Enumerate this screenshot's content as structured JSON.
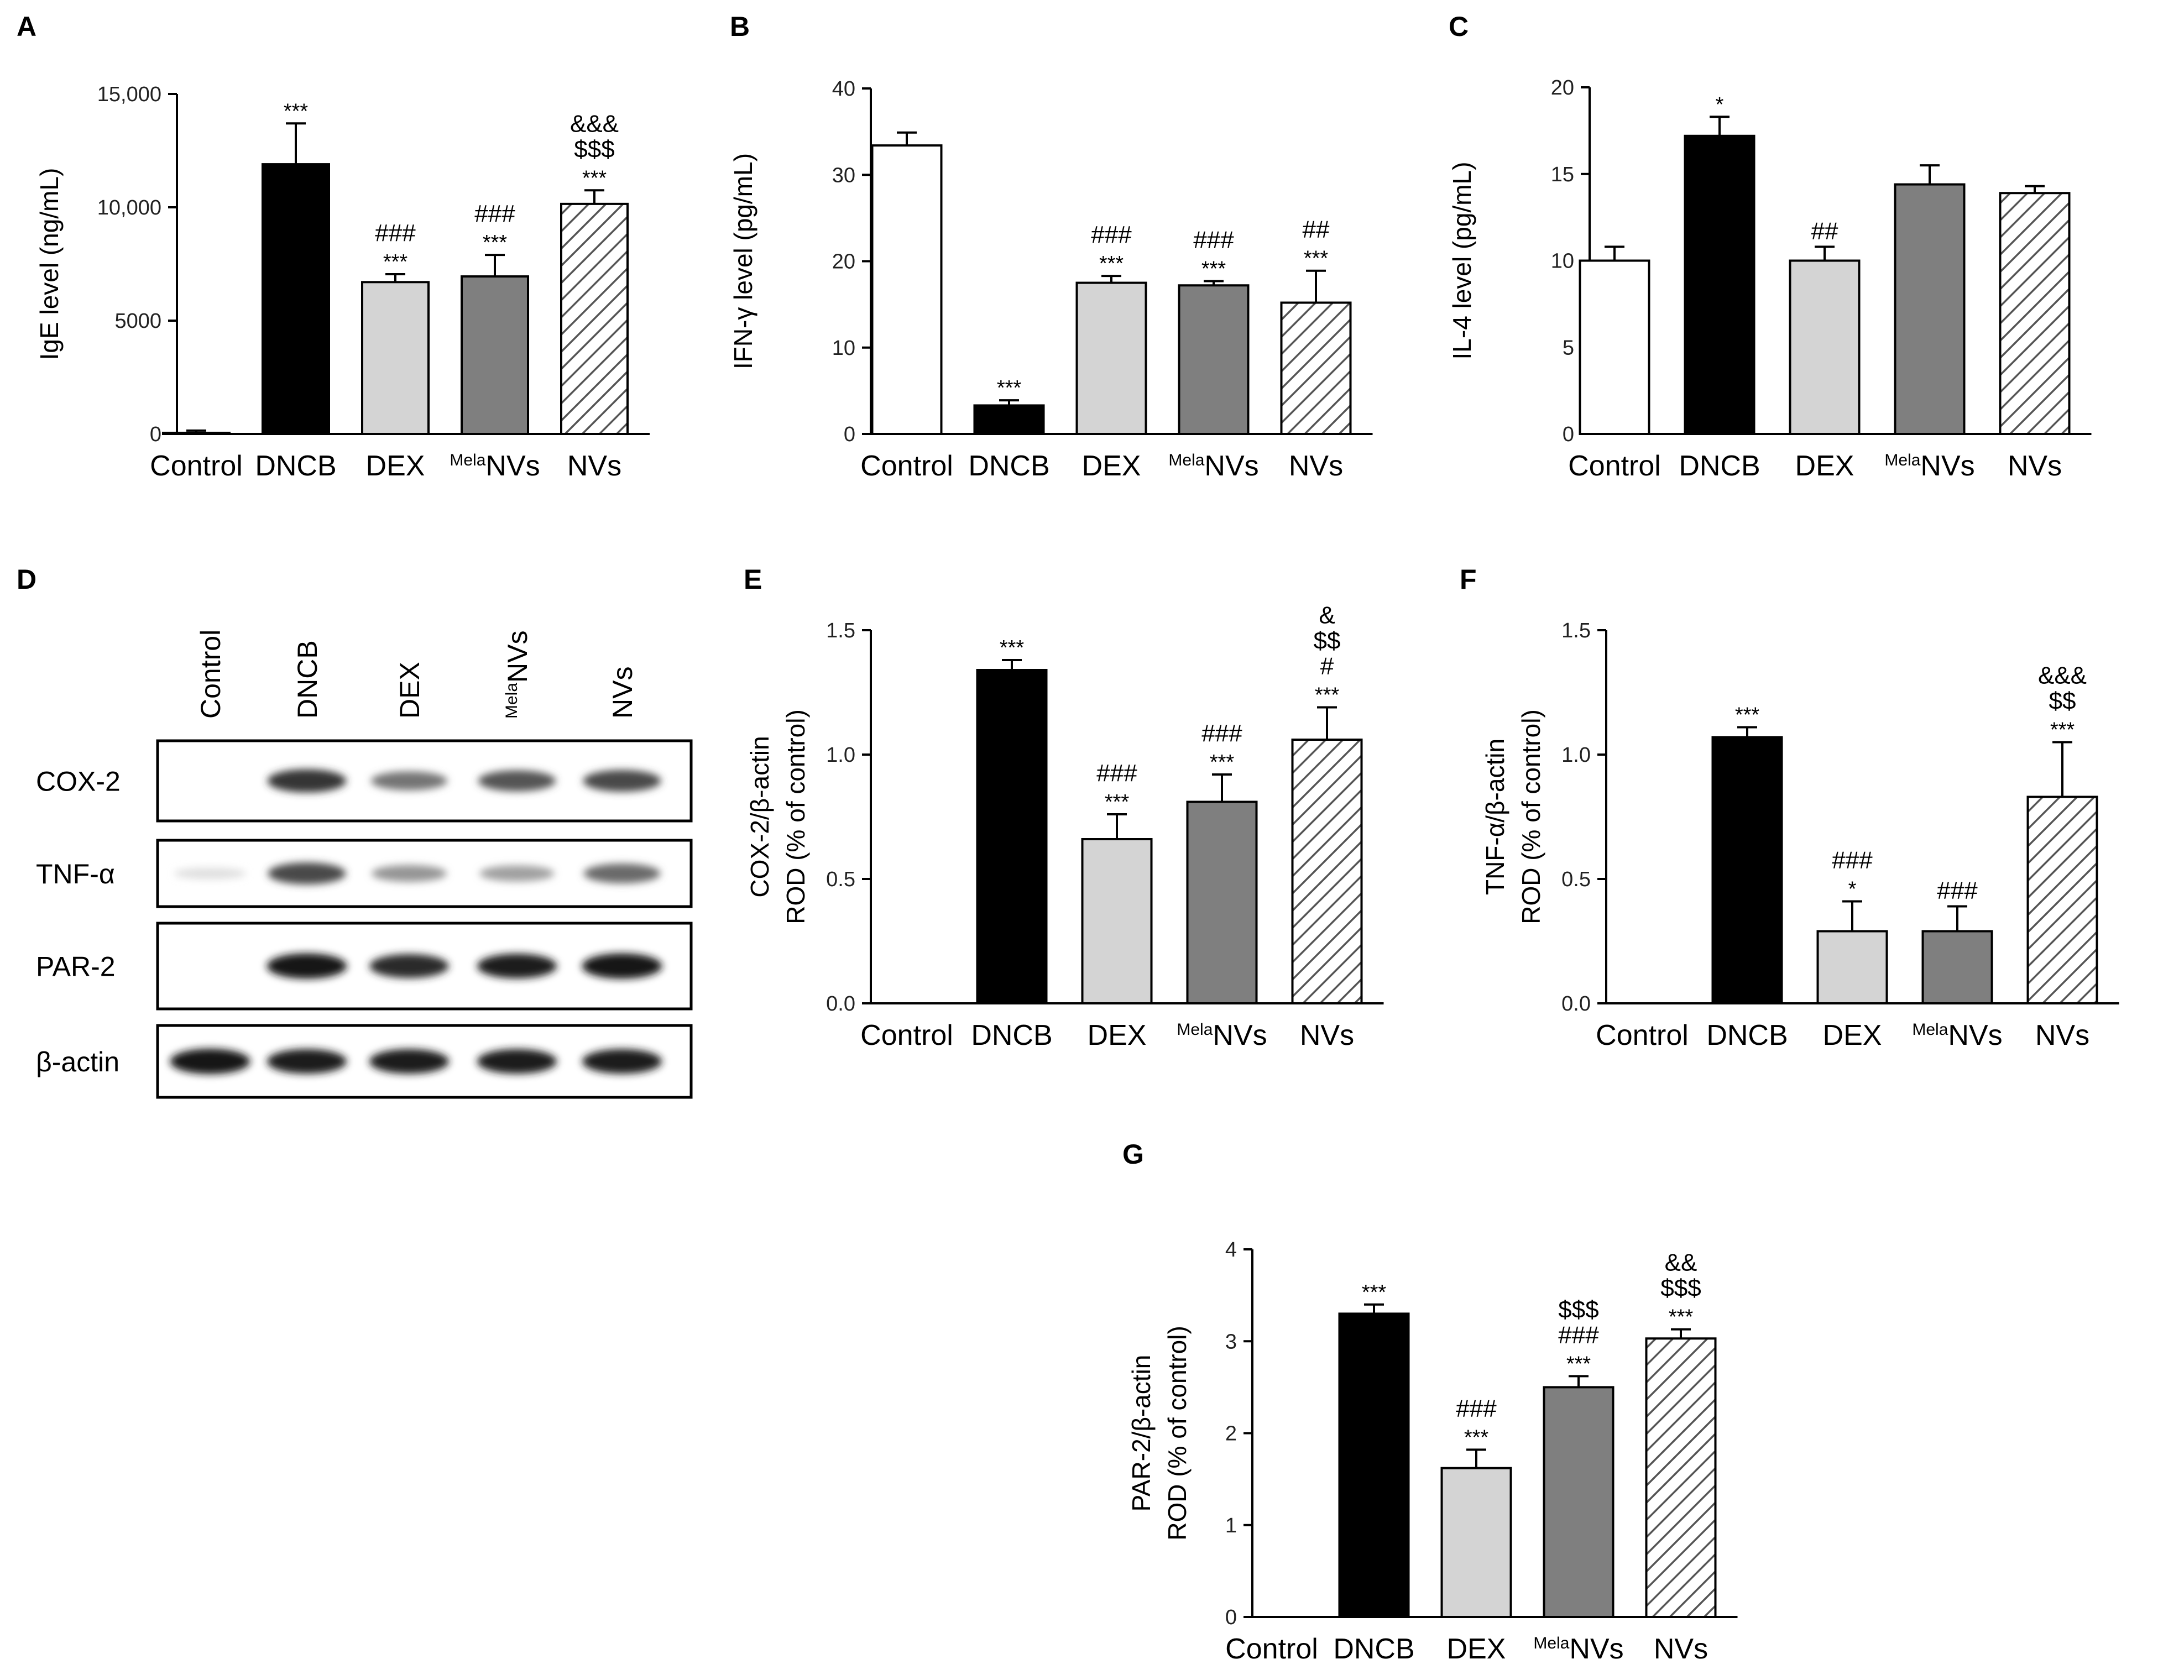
{
  "colors": {
    "Control": "#ffffff",
    "DNCB": "#000000",
    "DEX": "#d4d4d4",
    "MelaNVs": "#7f7f7f",
    "NVs": "hatch"
  },
  "category_labels": [
    {
      "main": "Control",
      "sup": ""
    },
    {
      "main": "DNCB",
      "sup": ""
    },
    {
      "main": "DEX",
      "sup": ""
    },
    {
      "main": "NVs",
      "sup": "Mela"
    },
    {
      "main": "NVs",
      "sup": ""
    }
  ],
  "chart_data": [
    {
      "panel": "A",
      "type": "bar",
      "ylabel": "IgE level (ng/mL)",
      "ylim": [
        0,
        15000
      ],
      "ticks": [
        0,
        5000,
        10000,
        15000
      ],
      "tick_labels": [
        "0",
        "5000",
        "10,000",
        "15,000"
      ],
      "categories": [
        "Control",
        "DNCB",
        "DEX",
        "MelaNVs",
        "NVs"
      ],
      "values": [
        50,
        11900,
        6700,
        6950,
        10150
      ],
      "errors": [
        100,
        1800,
        350,
        950,
        600
      ],
      "annotations": [
        [],
        [
          "***"
        ],
        [
          "***",
          "###"
        ],
        [
          "***",
          "###"
        ],
        [
          "***",
          "$$$",
          "&&&"
        ]
      ]
    },
    {
      "panel": "B",
      "type": "bar",
      "ylabel": "IFN-γ level (pg/mL)",
      "ylim": [
        0,
        40
      ],
      "ticks": [
        0,
        10,
        20,
        30,
        40
      ],
      "tick_labels": [
        "0",
        "10",
        "20",
        "30",
        "40"
      ],
      "categories": [
        "Control",
        "DNCB",
        "DEX",
        "MelaNVs",
        "NVs"
      ],
      "values": [
        33.4,
        3.3,
        17.5,
        17.2,
        15.2
      ],
      "errors": [
        1.5,
        0.6,
        0.8,
        0.5,
        3.7
      ],
      "annotations": [
        [],
        [
          "***"
        ],
        [
          "***",
          "###"
        ],
        [
          "***",
          "###"
        ],
        [
          "***",
          "##"
        ]
      ]
    },
    {
      "panel": "C",
      "type": "bar",
      "ylabel": "IL-4 level (pg/mL)",
      "ylim": [
        0,
        20
      ],
      "ticks": [
        0,
        5,
        10,
        15,
        20
      ],
      "tick_labels": [
        "0",
        "5",
        "10",
        "15",
        "20"
      ],
      "categories": [
        "Control",
        "DNCB",
        "DEX",
        "MelaNVs",
        "NVs"
      ],
      "values": [
        10.0,
        17.2,
        10.0,
        14.4,
        13.9
      ],
      "errors": [
        0.8,
        1.1,
        0.8,
        1.1,
        0.4
      ],
      "annotations": [
        [],
        [
          "*"
        ],
        [
          "##"
        ],
        [],
        []
      ]
    },
    {
      "panel": "E",
      "type": "bar",
      "ylabel": [
        "COX-2/β-actin",
        "ROD (% of control)"
      ],
      "ylim": [
        0,
        1.5
      ],
      "ticks": [
        0,
        0.5,
        1.0,
        1.5
      ],
      "tick_labels": [
        "0.0",
        "0.5",
        "1.0",
        "1.5"
      ],
      "categories": [
        "Control",
        "DNCB",
        "DEX",
        "MelaNVs",
        "NVs"
      ],
      "values": [
        0,
        1.34,
        0.66,
        0.81,
        1.06
      ],
      "errors": [
        0,
        0.04,
        0.1,
        0.11,
        0.13
      ],
      "annotations": [
        [],
        [
          "***"
        ],
        [
          "***",
          "###"
        ],
        [
          "***",
          "###"
        ],
        [
          "***",
          "#",
          "$$",
          "&"
        ]
      ]
    },
    {
      "panel": "F",
      "type": "bar",
      "ylabel": [
        "TNF-α/β-actin",
        "ROD (% of control)"
      ],
      "ylim": [
        0,
        1.5
      ],
      "ticks": [
        0,
        0.5,
        1.0,
        1.5
      ],
      "tick_labels": [
        "0.0",
        "0.5",
        "1.0",
        "1.5"
      ],
      "categories": [
        "Control",
        "DNCB",
        "DEX",
        "MelaNVs",
        "NVs"
      ],
      "values": [
        0,
        1.07,
        0.29,
        0.29,
        0.83
      ],
      "errors": [
        0,
        0.04,
        0.12,
        0.1,
        0.22
      ],
      "annotations": [
        [],
        [
          "***"
        ],
        [
          "*",
          "###"
        ],
        [
          "###"
        ],
        [
          "***",
          "$$",
          "&&&"
        ]
      ]
    },
    {
      "panel": "G",
      "type": "bar",
      "ylabel": [
        "PAR-2/β-actin",
        "ROD (% of control)"
      ],
      "ylim": [
        0,
        4
      ],
      "ticks": [
        0,
        1,
        2,
        3,
        4
      ],
      "tick_labels": [
        "0",
        "1",
        "2",
        "3",
        "4"
      ],
      "categories": [
        "Control",
        "DNCB",
        "DEX",
        "MelaNVs",
        "NVs"
      ],
      "values": [
        0,
        3.3,
        1.62,
        2.5,
        3.03
      ],
      "errors": [
        0,
        0.1,
        0.2,
        0.12,
        0.1
      ],
      "annotations": [
        [],
        [
          "***"
        ],
        [
          "***",
          "###"
        ],
        [
          "***",
          "###",
          "$$$"
        ],
        [
          "***",
          "$$$",
          "&&"
        ]
      ]
    }
  ],
  "western_blot": {
    "panel": "D",
    "lanes": [
      {
        "main": "Control",
        "sup": ""
      },
      {
        "main": "DNCB",
        "sup": ""
      },
      {
        "main": "DEX",
        "sup": ""
      },
      {
        "main": "NVs",
        "sup": "Mela"
      },
      {
        "main": "NVs",
        "sup": ""
      }
    ],
    "rows": [
      {
        "label": "COX-2",
        "intensity": [
          0.0,
          0.85,
          0.55,
          0.7,
          0.75
        ]
      },
      {
        "label": "TNF-α",
        "intensity": [
          0.05,
          0.75,
          0.4,
          0.35,
          0.6
        ]
      },
      {
        "label": "PAR-2",
        "intensity": [
          0.0,
          1.0,
          0.9,
          0.95,
          1.0
        ]
      },
      {
        "label": "β-actin",
        "intensity": [
          1.0,
          0.95,
          0.95,
          0.95,
          0.95
        ]
      }
    ]
  }
}
